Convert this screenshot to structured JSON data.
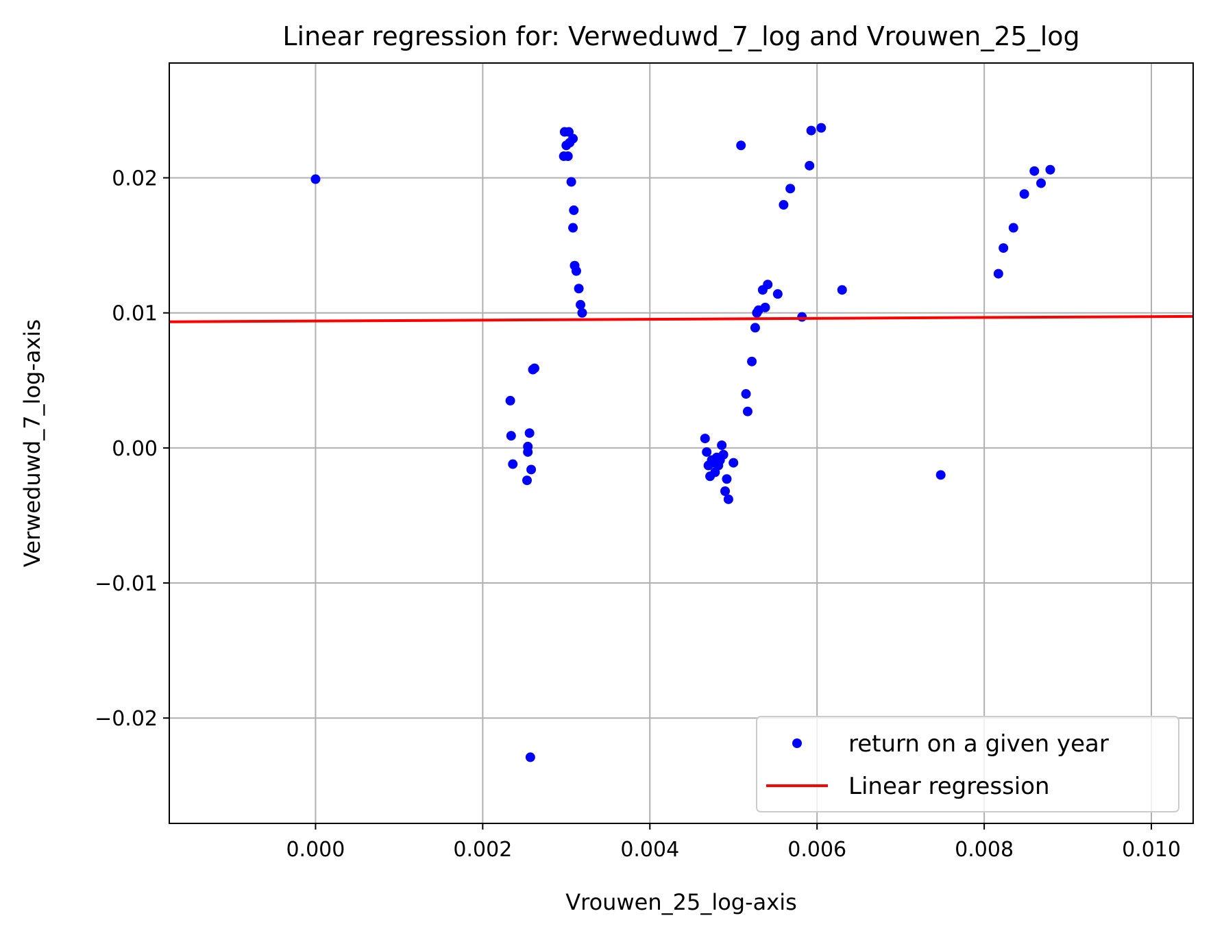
{
  "chart_data": {
    "type": "scatter",
    "title": "Linear regression for: Verweduwd_7_log and Vrouwen_25_log",
    "xlabel": "Vrouwen_25_log-axis",
    "ylabel": "Verweduwd_7_log-axis",
    "xlim": [
      -0.00175,
      0.0105
    ],
    "ylim": [
      -0.0278,
      0.0285
    ],
    "xticks": [
      0.0,
      0.002,
      0.004,
      0.006,
      0.008,
      0.01
    ],
    "xtick_labels": [
      "0.000",
      "0.002",
      "0.004",
      "0.006",
      "0.008",
      "0.010"
    ],
    "yticks": [
      -0.02,
      -0.01,
      0.0,
      0.01,
      0.02
    ],
    "ytick_labels": [
      "−0.02",
      "−0.01",
      "0.00",
      "0.01",
      "0.02"
    ],
    "grid": true,
    "legend_position": "bottom-right",
    "series": [
      {
        "name": "return on a given year",
        "kind": "scatter",
        "color": "#0000ff",
        "points": [
          [
            0.0,
            0.0199
          ],
          [
            0.00233,
            0.0035
          ],
          [
            0.00234,
            0.0009
          ],
          [
            0.00236,
            -0.0012
          ],
          [
            0.00253,
            -0.0024
          ],
          [
            0.00254,
            0.0001
          ],
          [
            0.00254,
            -0.0003
          ],
          [
            0.00256,
            0.0011
          ],
          [
            0.00258,
            -0.0016
          ],
          [
            0.0026,
            0.0058
          ],
          [
            0.00262,
            0.0059
          ],
          [
            0.00257,
            -0.0229
          ],
          [
            0.00298,
            0.0234
          ],
          [
            0.00303,
            0.0234
          ],
          [
            0.003,
            0.0224
          ],
          [
            0.00304,
            0.0226
          ],
          [
            0.00308,
            0.0229
          ],
          [
            0.00297,
            0.0216
          ],
          [
            0.00302,
            0.0216
          ],
          [
            0.00306,
            0.0197
          ],
          [
            0.00309,
            0.0176
          ],
          [
            0.00308,
            0.0163
          ],
          [
            0.0031,
            0.0135
          ],
          [
            0.00312,
            0.0131
          ],
          [
            0.00315,
            0.0118
          ],
          [
            0.00317,
            0.0106
          ],
          [
            0.00319,
            0.01
          ],
          [
            0.00466,
            0.0007
          ],
          [
            0.00468,
            -0.0003
          ],
          [
            0.0047,
            -0.0013
          ],
          [
            0.00472,
            -0.0021
          ],
          [
            0.00474,
            -0.0009
          ],
          [
            0.00476,
            -0.0011
          ],
          [
            0.00478,
            -0.0018
          ],
          [
            0.0048,
            -0.0007
          ],
          [
            0.00482,
            -0.0013
          ],
          [
            0.00484,
            -0.0009
          ],
          [
            0.00486,
            0.0002
          ],
          [
            0.00488,
            -0.0005
          ],
          [
            0.0049,
            -0.0032
          ],
          [
            0.00492,
            -0.0023
          ],
          [
            0.00494,
            -0.0038
          ],
          [
            0.005,
            -0.0011
          ],
          [
            0.00509,
            0.0224
          ],
          [
            0.00515,
            0.004
          ],
          [
            0.00517,
            0.0027
          ],
          [
            0.00522,
            0.0064
          ],
          [
            0.00526,
            0.0089
          ],
          [
            0.00528,
            0.01
          ],
          [
            0.0053,
            0.0102
          ],
          [
            0.00535,
            0.0117
          ],
          [
            0.00538,
            0.0104
          ],
          [
            0.00541,
            0.0121
          ],
          [
            0.00553,
            0.0114
          ],
          [
            0.0056,
            0.018
          ],
          [
            0.00568,
            0.0192
          ],
          [
            0.00582,
            0.0097
          ],
          [
            0.00591,
            0.0209
          ],
          [
            0.00593,
            0.0235
          ],
          [
            0.00605,
            0.0237
          ],
          [
            0.0063,
            0.0117
          ],
          [
            0.00748,
            -0.002
          ],
          [
            0.00817,
            0.0129
          ],
          [
            0.00823,
            0.0148
          ],
          [
            0.00835,
            0.0163
          ],
          [
            0.00848,
            0.0188
          ],
          [
            0.0086,
            0.0205
          ],
          [
            0.00868,
            0.0196
          ],
          [
            0.00879,
            0.0206
          ]
        ]
      },
      {
        "name": "Linear regression",
        "kind": "line",
        "color": "#ff0000",
        "points": [
          [
            -0.00175,
            0.00934
          ],
          [
            0.0105,
            0.00974
          ]
        ]
      }
    ]
  }
}
